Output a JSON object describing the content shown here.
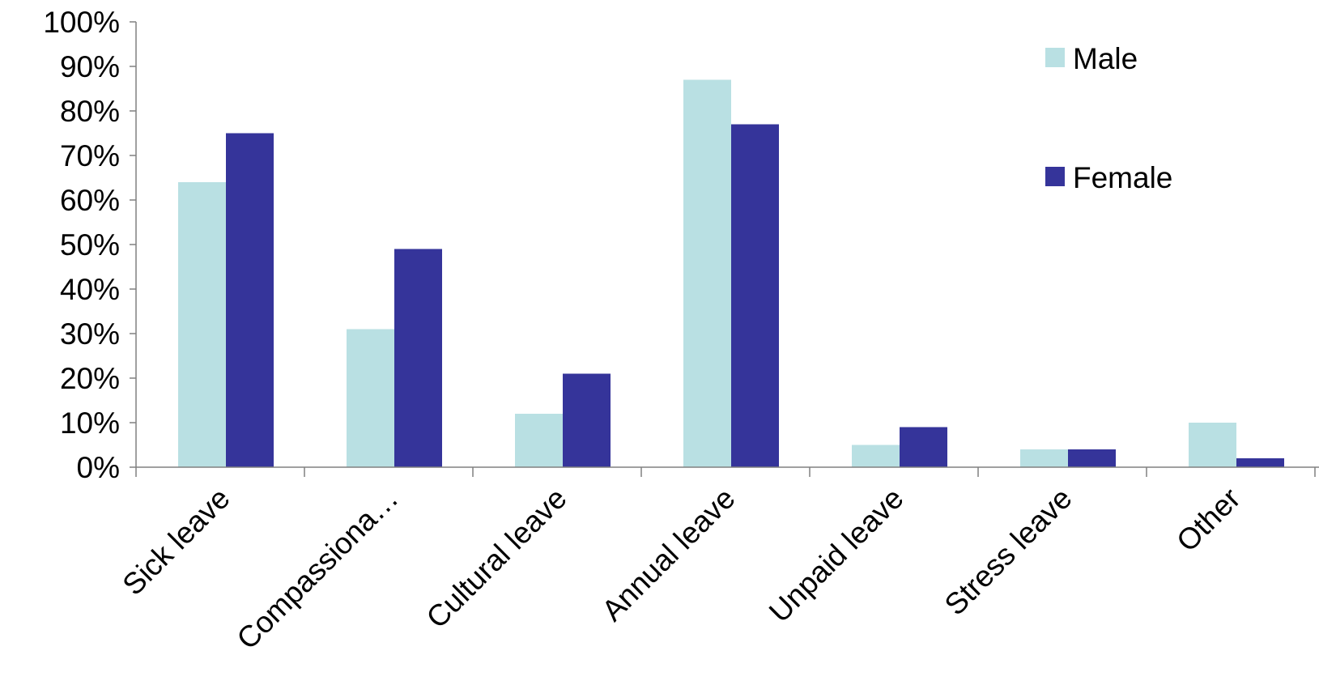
{
  "chart_data": {
    "type": "bar",
    "categories": [
      "Sick leave",
      "Compassiona…",
      "Cultural leave",
      "Annual leave",
      "Unpaid leave",
      "Stress leave",
      "Other"
    ],
    "series": [
      {
        "name": "Male",
        "color": "#B9E0E3",
        "values": [
          64,
          31,
          12,
          87,
          5,
          4,
          10
        ]
      },
      {
        "name": "Female",
        "color": "#35349A",
        "values": [
          75,
          49,
          21,
          77,
          9,
          4,
          2
        ]
      }
    ],
    "yticks": [
      "0%",
      "10%",
      "20%",
      "30%",
      "40%",
      "50%",
      "60%",
      "70%",
      "80%",
      "90%",
      "100%"
    ],
    "ylim": [
      0,
      100
    ],
    "grid": false,
    "legend_position": "top-right"
  }
}
